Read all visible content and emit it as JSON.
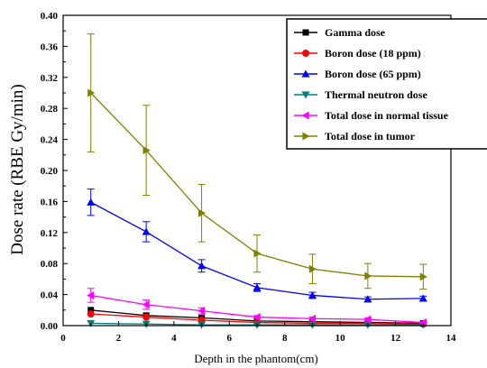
{
  "chart_data": {
    "type": "line",
    "title": "",
    "xlabel": "Depth in the phantom(cm)",
    "ylabel": "Dose rate (RBE Gy/min)",
    "xlim": [
      0,
      14
    ],
    "ylim": [
      0,
      0.4
    ],
    "xticks": [
      0,
      2,
      4,
      6,
      8,
      10,
      12,
      14
    ],
    "xtick_labels": [
      "0",
      "2",
      "4",
      "6",
      "8",
      "10",
      "12",
      "14"
    ],
    "yticks": [
      0,
      0.04,
      0.08,
      0.12,
      0.16,
      0.2,
      0.24,
      0.28,
      0.32,
      0.36,
      0.4
    ],
    "ytick_labels": [
      "0.00",
      "0.04",
      "0.08",
      "0.12",
      "0.16",
      "0.20",
      "0.24",
      "0.28",
      "0.32",
      "0.36",
      "0.40"
    ],
    "grid": false,
    "legend_position": "top-right",
    "x": [
      1,
      3,
      5,
      7,
      9,
      11,
      13
    ],
    "series": [
      {
        "name": "Gamma dose",
        "color": "#000000",
        "marker": "square",
        "values": [
          0.02,
          0.013,
          0.01,
          0.006,
          0.005,
          0.004,
          0.003
        ],
        "errors": [
          0,
          0,
          0,
          0,
          0,
          0,
          0
        ]
      },
      {
        "name": "Boron dose (18 ppm)",
        "color": "#ff0000",
        "marker": "circle",
        "values": [
          0.015,
          0.011,
          0.007,
          0.004,
          0.003,
          0.003,
          0.002
        ],
        "errors": [
          0,
          0,
          0,
          0,
          0,
          0,
          0
        ]
      },
      {
        "name": "Boron dose (65 ppm)",
        "color": "#0000ff",
        "marker": "triangle-up",
        "values": [
          0.159,
          0.121,
          0.077,
          0.049,
          0.039,
          0.034,
          0.035
        ],
        "errors": [
          0.017,
          0.013,
          0.008,
          0.005,
          0.004,
          0.003,
          0.003
        ]
      },
      {
        "name": "Thermal neutron dose",
        "color": "#008080",
        "marker": "triangle-down",
        "values": [
          0.003,
          0.002,
          0.001,
          0.001,
          0.001,
          0.001,
          0.001
        ],
        "errors": [
          0,
          0,
          0,
          0,
          0,
          0,
          0
        ]
      },
      {
        "name": "Total dose in normal tissue",
        "color": "#ff00ff",
        "marker": "triangle-left",
        "values": [
          0.039,
          0.027,
          0.019,
          0.011,
          0.009,
          0.008,
          0.004
        ],
        "errors": [
          0.009,
          0.006,
          0.004,
          0.002,
          0.002,
          0.002,
          0.001
        ]
      },
      {
        "name": "Total dose in tumor",
        "color": "#808000",
        "marker": "triangle-right",
        "values": [
          0.3,
          0.226,
          0.145,
          0.093,
          0.073,
          0.064,
          0.063
        ],
        "errors": [
          0.076,
          0.058,
          0.037,
          0.024,
          0.019,
          0.016,
          0.016
        ]
      }
    ]
  }
}
